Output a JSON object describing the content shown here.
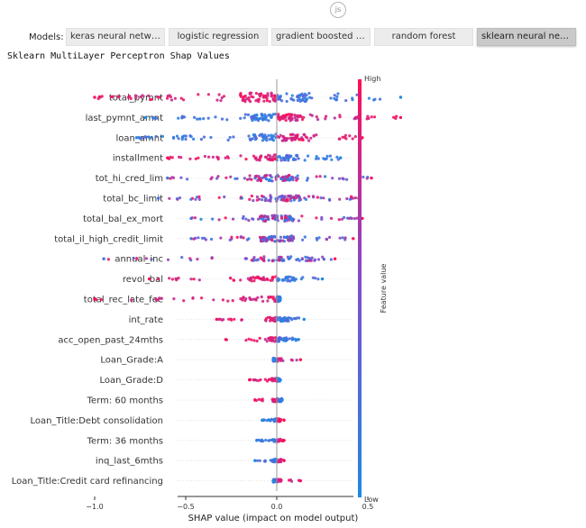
{
  "badge": {
    "text": "js"
  },
  "models": {
    "label": "Models:",
    "tabs": [
      {
        "label": "keras neural network",
        "active": false
      },
      {
        "label": "logistic regression",
        "active": false
      },
      {
        "label": "gradient boosted tr...",
        "active": false
      },
      {
        "label": "random forest",
        "active": false
      },
      {
        "label": "sklearn neural netw...",
        "active": true
      }
    ]
  },
  "chart_title": "Sklearn MultiLayer Perceptron Shap Values",
  "chart_data": {
    "type": "scatter",
    "subtype": "shap-beeswarm",
    "title": "Sklearn MultiLayer Perceptron Shap Values",
    "xlabel": "SHAP value (impact on model output)",
    "xlim": [
      -1.05,
      0.78
    ],
    "xticks": [
      -1.0,
      -0.5,
      0.0,
      0.5
    ],
    "xtick_labels": [
      "−1.0",
      "−0.5",
      "0.0",
      "0.5"
    ],
    "colorbar": {
      "label": "Feature value",
      "high": "High",
      "low": "Low",
      "colors": [
        "#1e88e5",
        "#7c4fd0",
        "#ff0d57"
      ]
    },
    "features": [
      {
        "name": "total_pymnt",
        "min": -1.0,
        "max": 0.68,
        "low_side": "pos",
        "spread": 4,
        "density": 1.4
      },
      {
        "name": "last_pymnt_amnt",
        "min": -0.72,
        "max": 0.68,
        "low_side": "neg",
        "spread": 3,
        "density": 1.2
      },
      {
        "name": "loan_amnt",
        "min": -0.77,
        "max": 0.47,
        "low_side": "neg",
        "spread": 3,
        "density": 1.1
      },
      {
        "name": "installment",
        "min": -0.6,
        "max": 0.35,
        "low_side": "pos",
        "spread": 2.5,
        "density": 0.8
      },
      {
        "name": "tot_hi_cred_lim",
        "min": -0.6,
        "max": 0.52,
        "low_side": "mix",
        "spread": 2.5,
        "density": 0.9
      },
      {
        "name": "total_bc_limit",
        "min": -0.65,
        "max": 0.45,
        "low_side": "mix",
        "spread": 2.5,
        "density": 0.8
      },
      {
        "name": "total_bal_ex_mort",
        "min": -0.47,
        "max": 0.47,
        "low_side": "mix",
        "spread": 2.5,
        "density": 0.8
      },
      {
        "name": "total_il_high_credit_limit",
        "min": -0.47,
        "max": 0.42,
        "low_side": "mix",
        "spread": 2.5,
        "density": 0.8
      },
      {
        "name": "annual_inc",
        "min": -0.95,
        "max": 0.32,
        "low_side": "mix",
        "spread": 2,
        "density": 0.6
      },
      {
        "name": "revol_bal",
        "min": -0.7,
        "max": 0.25,
        "low_side": "pos",
        "spread": 2,
        "density": 0.6
      },
      {
        "name": "total_rec_late_fee",
        "min": -1.0,
        "max": 0.02,
        "low_side": "pos",
        "spread": 2,
        "density": 0.7
      },
      {
        "name": "int_rate",
        "min": -0.33,
        "max": 0.15,
        "low_side": "pos",
        "spread": 1.8,
        "density": 0.5
      },
      {
        "name": "acc_open_past_24mths",
        "min": -0.28,
        "max": 0.12,
        "low_side": "pos",
        "spread": 1.8,
        "density": 0.4
      },
      {
        "name": "Loan_Grade:A",
        "min": -0.02,
        "max": 0.13,
        "low_side": "neg",
        "spread": 1.5,
        "density": 0.3
      },
      {
        "name": "Loan_Grade:D",
        "min": -0.15,
        "max": 0.02,
        "low_side": "pos",
        "spread": 1.5,
        "density": 0.3
      },
      {
        "name": "Term: 60 months",
        "min": -0.12,
        "max": 0.03,
        "low_side": "pos",
        "spread": 1.5,
        "density": 0.3
      },
      {
        "name": "Loan_Title:Debt consolidation",
        "min": -0.08,
        "max": 0.04,
        "low_side": "neg",
        "spread": 1.3,
        "density": 0.25
      },
      {
        "name": "Term: 36 months",
        "min": -0.11,
        "max": 0.04,
        "low_side": "neg",
        "spread": 1.3,
        "density": 0.25
      },
      {
        "name": "inq_last_6mths",
        "min": -0.12,
        "max": 0.04,
        "low_side": "neg",
        "spread": 1.3,
        "density": 0.25
      },
      {
        "name": "Loan_Title:Credit card refinancing",
        "min": -0.02,
        "max": 0.13,
        "low_side": "neg",
        "spread": 1.3,
        "density": 0.25
      }
    ]
  }
}
